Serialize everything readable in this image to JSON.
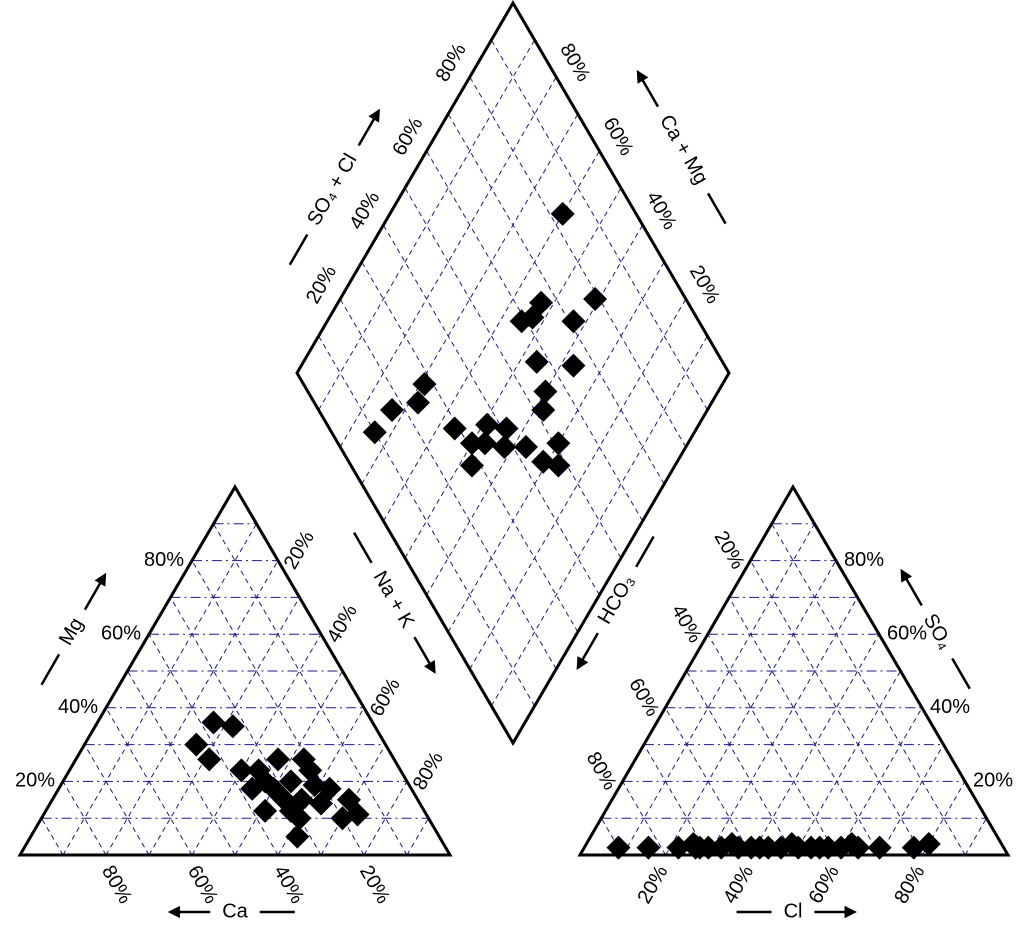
{
  "chart_data": {
    "type": "piper",
    "cation_axes": {
      "ca": "Ca",
      "mg": "Mg",
      "nak": "Na + K"
    },
    "anion_axes": {
      "cl": "Cl",
      "so4": "SO₄",
      "hco3": "HCO₃"
    },
    "diamond_axes": {
      "so4cl": "SO₄ + Cl",
      "camg": "Ca + Mg"
    },
    "ticks": [
      {
        "value": 20,
        "label": "20%"
      },
      {
        "value": 40,
        "label": "40%"
      },
      {
        "value": 60,
        "label": "60%"
      },
      {
        "value": 80,
        "label": "80%"
      }
    ],
    "gridlines": [
      10,
      20,
      30,
      40,
      50,
      60,
      70,
      80,
      90
    ],
    "ca": [
      44,
      37,
      33,
      43,
      33,
      32,
      27,
      37,
      27,
      21,
      19,
      16,
      16,
      20,
      33,
      30,
      31,
      37,
      27,
      23,
      33,
      31,
      22,
      37,
      21
    ],
    "mg": [
      30,
      36,
      35,
      26,
      23,
      18,
      20,
      12,
      15,
      23,
      18,
      15,
      11,
      10,
      5,
      10,
      15,
      18,
      26,
      14,
      20,
      12,
      19,
      23,
      26
    ],
    "cl": [
      8,
      15,
      22,
      25,
      27,
      29,
      32,
      34,
      36,
      39,
      41,
      43,
      46,
      48,
      50,
      53,
      55,
      57,
      60,
      62,
      64,
      69,
      77,
      80,
      26
    ],
    "so4": [
      2,
      2,
      2,
      3,
      2,
      2,
      2,
      3,
      2,
      2,
      2,
      2,
      2,
      3,
      2,
      2,
      2,
      2,
      2,
      3,
      2,
      2,
      2,
      3,
      2
    ],
    "marker_color": "#000000",
    "grid_color": "#1a1a8c"
  }
}
